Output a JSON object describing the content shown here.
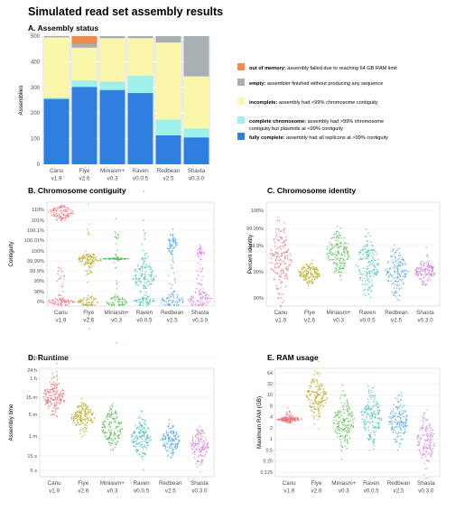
{
  "figure_title": "Simulated read set assembly results",
  "categories": [
    "Canu v1.9",
    "Flye v2.6",
    "Miniasm+ v0.3",
    "Raven v0.0.5",
    "Redbean v2.5",
    "Shasta v0.3.0"
  ],
  "colors": {
    "out_of_memory": "#ef8a4f",
    "empty": "#a8b0b4",
    "incomplete": "#fbf7aa",
    "complete_chromosome": "#9ef0ea",
    "fully_complete": "#2f7fe0",
    "assemblers": [
      "#f06e7a",
      "#b8aa1c",
      "#4fc04b",
      "#3fc3b0",
      "#52a7e6",
      "#d878de"
    ]
  },
  "chart_data": [
    {
      "panel": "A",
      "type": "bar",
      "stacked": true,
      "title": "A. Assembly status",
      "ylabel": "Assemblies",
      "ylim": [
        0,
        500
      ],
      "yticks": [
        0,
        100,
        200,
        300,
        400,
        500
      ],
      "categories": [
        "Canu v1.9",
        "Flye v2.6",
        "Miniasm+ v0.3",
        "Raven v0.0.5",
        "Redbean v2.5",
        "Shasta v0.3.0"
      ],
      "series": [
        {
          "key": "fully_complete",
          "name": "fully complete",
          "desc": "assembly had all replicons at >99% contiguity",
          "values": [
            255,
            302,
            290,
            278,
            113,
            105
          ]
        },
        {
          "key": "complete_chromosome",
          "name": "complete chromosome",
          "desc": "assembly had >99% chromosome contiguity but plasmids at <99% contiguity",
          "values": [
            5,
            25,
            32,
            68,
            62,
            35
          ]
        },
        {
          "key": "incomplete",
          "name": "incomplete",
          "desc": "assembly had <99% chromosome contiguity",
          "values": [
            235,
            128,
            170,
            146,
            300,
            203
          ]
        },
        {
          "key": "empty",
          "name": "empty",
          "desc": "assembler finished without producing any sequence",
          "values": [
            5,
            15,
            8,
            8,
            25,
            157
          ]
        },
        {
          "key": "out_of_memory",
          "name": "out of memory",
          "desc": "assembly failed due to reaching 64 GB RAM limit",
          "values": [
            0,
            30,
            0,
            0,
            0,
            0
          ]
        }
      ]
    },
    {
      "panel": "B",
      "type": "scatter",
      "title": "B. Chromosome contiguity",
      "ylabel": "Contiguity",
      "yticks": [
        "0%",
        "90%",
        "99%",
        "99.9%",
        "99.99%",
        "100%",
        "100.01%",
        "100.1%",
        "101%",
        "110%"
      ],
      "categories": [
        "Canu v1.9",
        "Flye v2.6",
        "Miniasm+ v0.3",
        "Raven v0.0.5",
        "Redbean v2.5",
        "Shasta v0.3.0"
      ]
    },
    {
      "panel": "C",
      "type": "scatter",
      "title": "C. Chromosome identity",
      "ylabel": "Percent identity",
      "yticks": [
        "90%",
        "99%",
        "99.9%",
        "99.99%",
        "100%"
      ],
      "categories": [
        "Canu v1.9",
        "Flye v2.6",
        "Miniasm+ v0.3",
        "Raven v0.0.5",
        "Redbean v2.5",
        "Shasta v0.3.0"
      ]
    },
    {
      "panel": "D",
      "type": "scatter",
      "title": "D. Runtime",
      "ylabel": "Assembly time",
      "yticks": [
        "5 s",
        "15 s",
        "1 m",
        "5 m",
        "15 m",
        "1 h",
        "6 h",
        "24 h"
      ],
      "categories": [
        "Canu v1.9",
        "Flye v2.6",
        "Miniasm+ v0.3",
        "Raven v0.0.5",
        "Redbean v2.5",
        "Shasta v0.3.0"
      ]
    },
    {
      "panel": "E",
      "type": "scatter",
      "title": "E. RAM usage",
      "ylabel": "Maximum RAM (GB)",
      "yticks": [
        "0.125",
        "0.25",
        "0.5",
        "1",
        "2",
        "4",
        "8",
        "16",
        "32",
        "64"
      ],
      "categories": [
        "Canu v1.9",
        "Flye v2.6",
        "Miniasm+ v0.3",
        "Raven v0.0.5",
        "Redbean v2.5",
        "Shasta v0.3.0"
      ]
    }
  ]
}
